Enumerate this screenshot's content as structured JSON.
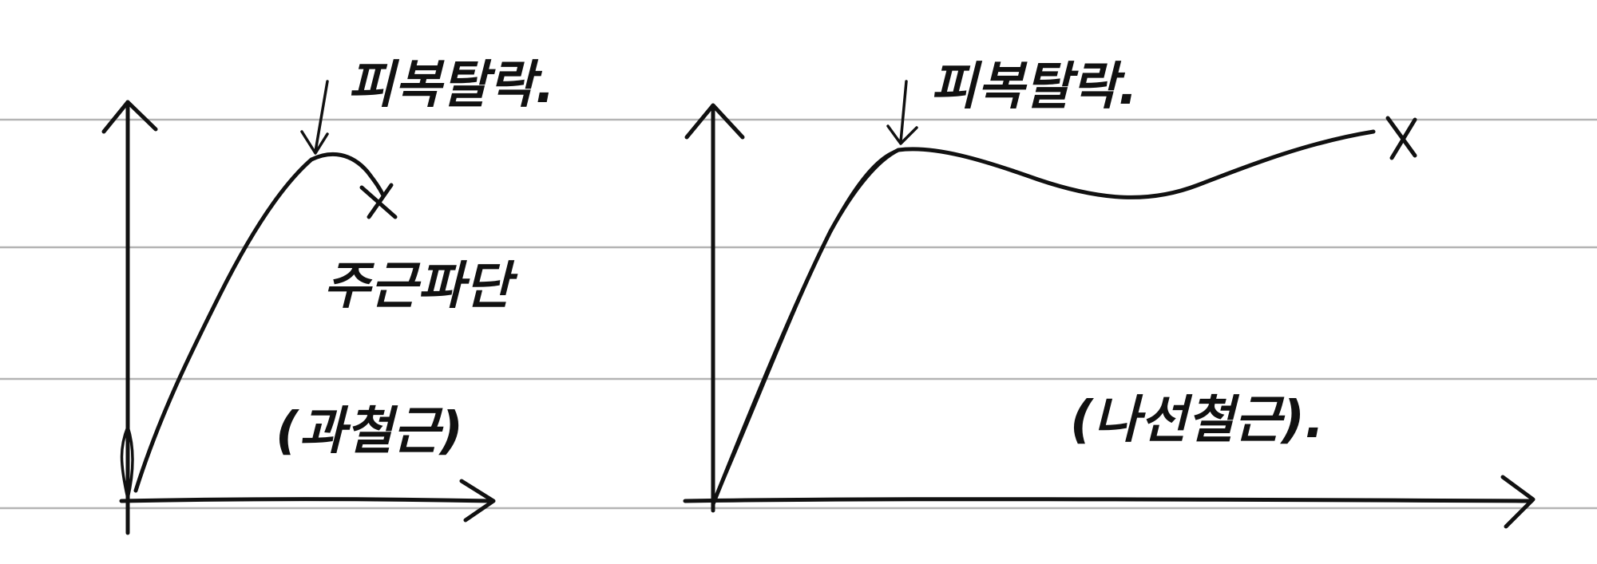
{
  "left_graph": {
    "peak_annotation": "피복탈락.",
    "fracture_annotation": "주근파단",
    "caption": "(과철근)"
  },
  "right_graph": {
    "peak_annotation": "피복탈락.",
    "caption": "(나선철근)."
  }
}
